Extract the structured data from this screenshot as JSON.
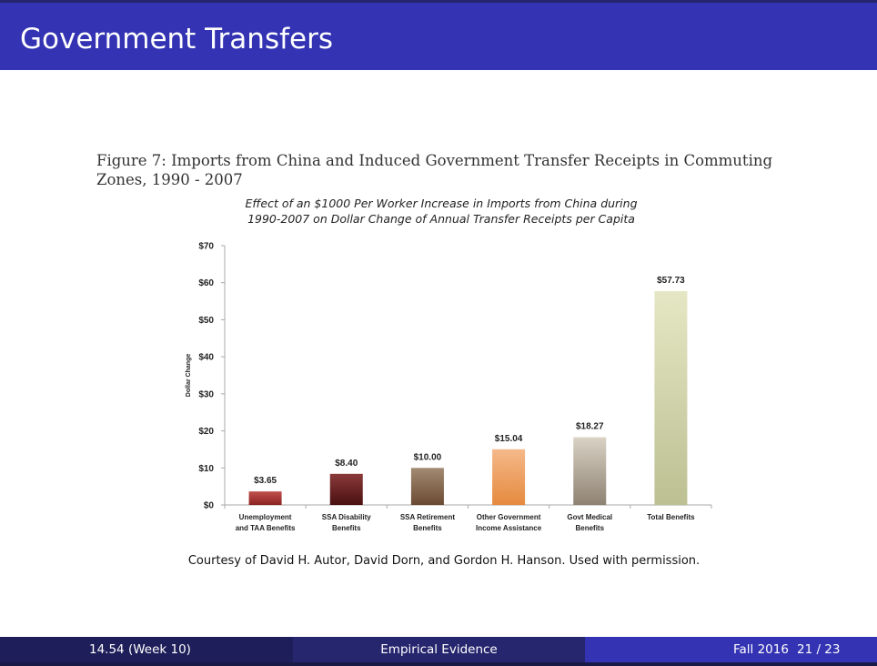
{
  "slide": {
    "title": "Government Transfers",
    "figure_caption": "Figure 7: Imports from China and Induced Government Transfer Receipts in Commuting Zones, 1990 - 2007",
    "courtesy": "Courtesy of David H. Autor, David Dorn, and Gordon H. Hanson. Used with permission."
  },
  "footer": {
    "course": "14.54 (Week 10)",
    "section": "Empirical Evidence",
    "term": "Fall 2016",
    "page": "21 / 23"
  },
  "chart_data": {
    "type": "bar",
    "title": "Effect of an $1000 Per Worker Increase in Imports from China during 1990-2007 on Dollar Change of Annual Transfer Receipts per Capita",
    "ylabel": "Dollar Change",
    "xlabel": "",
    "ylim": [
      0,
      70
    ],
    "yticks": [
      0,
      10,
      20,
      30,
      40,
      50,
      60,
      70
    ],
    "ytick_labels": [
      "$0",
      "$10",
      "$20",
      "$30",
      "$40",
      "$50",
      "$60",
      "$70"
    ],
    "categories": [
      [
        "Unemployment",
        "and TAA Benefits"
      ],
      [
        "SSA Disability",
        "Benefits"
      ],
      [
        "SSA Retirement",
        "Benefits"
      ],
      [
        "Other Government",
        "Income Assistance"
      ],
      [
        "Govt Medical",
        "Benefits"
      ],
      [
        "Total Benefits"
      ]
    ],
    "values": [
      3.65,
      8.4,
      10.0,
      15.04,
      18.27,
      57.73
    ],
    "data_labels": [
      "$3.65",
      "$8.40",
      "$10.00",
      "$15.04",
      "$18.27",
      "$57.73"
    ],
    "colors": [
      [
        "#c0504d",
        "#8b2322"
      ],
      [
        "#8a3a3a",
        "#4a1010"
      ],
      [
        "#a38a72",
        "#6b4a32"
      ],
      [
        "#f5b98a",
        "#e58a3e"
      ],
      [
        "#d9d2c5",
        "#8f8272"
      ],
      [
        "#e5e7c4",
        "#bcc092"
      ]
    ],
    "grid": false,
    "legend": "none"
  }
}
